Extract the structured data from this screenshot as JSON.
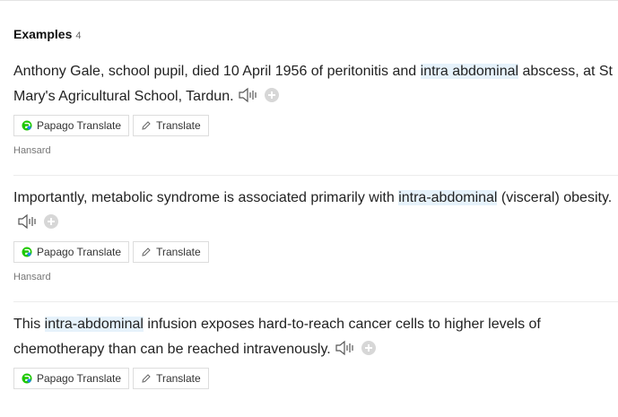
{
  "section": {
    "title": "Examples",
    "count": "4"
  },
  "examples": [
    {
      "before": "Anthony Gale, school pupil, died 10 April 1956 of peritonitis and ",
      "highlight": "intra abdominal",
      "after": " abscess, at St Mary's Agricultural School, Tardun.",
      "papago_label": "Papago Translate",
      "translate_label": "Translate",
      "source": "Hansard"
    },
    {
      "before": "Importantly, metabolic syndrome is associated primarily with ",
      "highlight": "intra-abdominal",
      "after": " (visceral) obesity.",
      "papago_label": "Papago Translate",
      "translate_label": "Translate",
      "source": "Hansard"
    },
    {
      "before": "This ",
      "highlight": "intra-abdominal",
      "after": " infusion exposes hard-to-reach cancer cells to higher levels of chemotherapy than can be reached intravenously.",
      "papago_label": "Papago Translate",
      "translate_label": "Translate"
    }
  ],
  "icons": {
    "audio": "speaker-icon",
    "add": "plus-circle-icon",
    "papago": "papago-logo-icon",
    "translate": "pencil-icon"
  },
  "colors": {
    "highlight": "#e6f2fb",
    "papago_green": "#1ec800",
    "papago_blue": "#1e88e5"
  }
}
